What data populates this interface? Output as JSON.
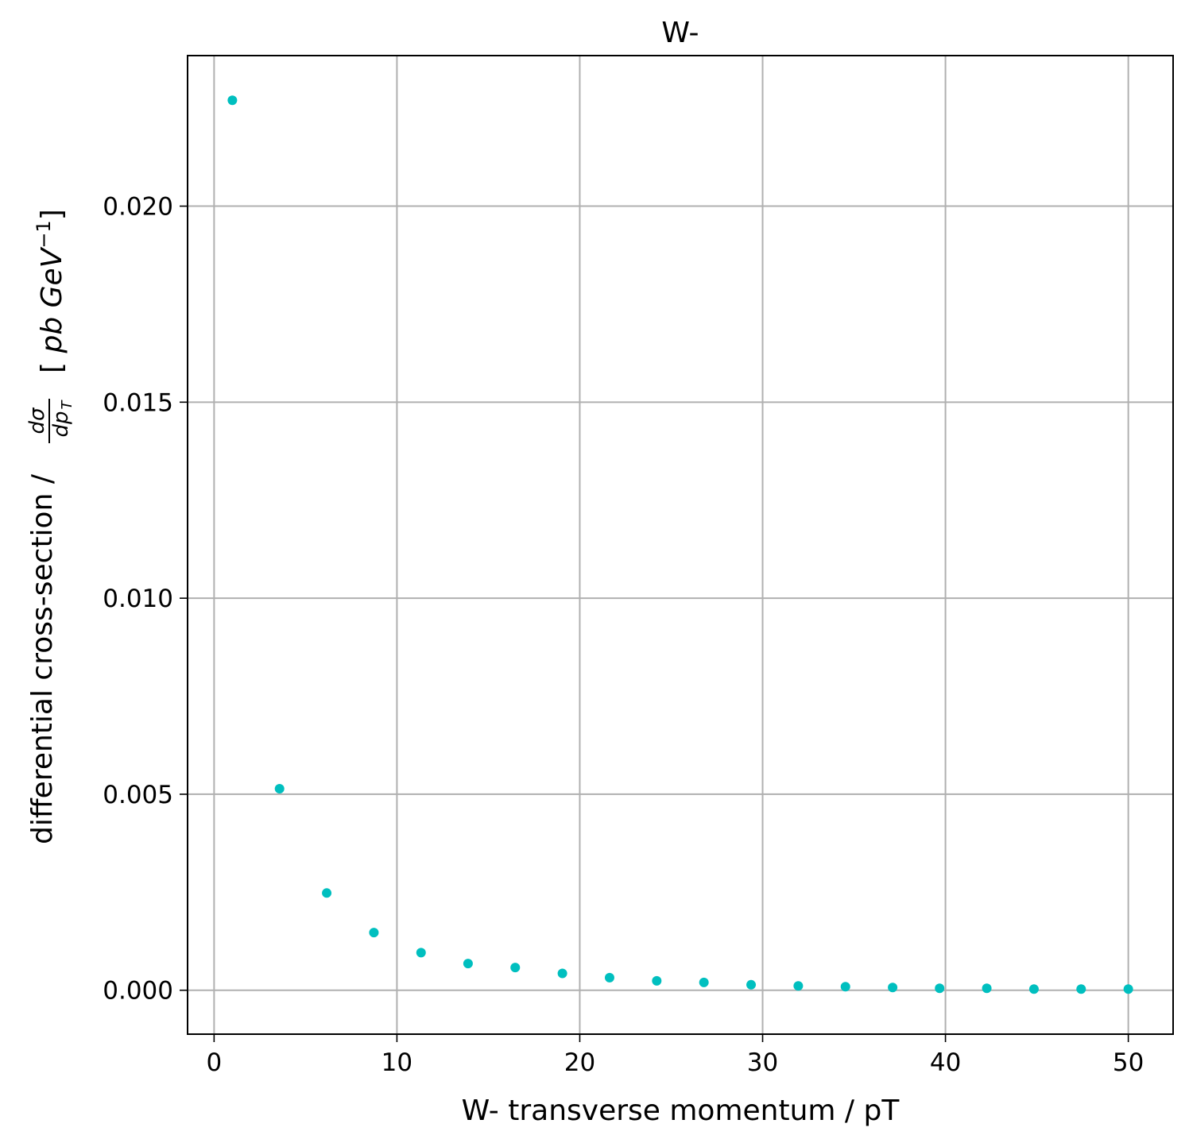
{
  "chart_data": {
    "type": "scatter",
    "title": "W-",
    "xlabel": "W- transverse momentum / pT",
    "ylabel": {
      "prefix": "differential cross-section / ",
      "frac_num": "dσ",
      "frac_den": "dp",
      "frac_den_sub": "T",
      "unit_open": "[",
      "unit_pb": "pb",
      "unit_gev": "GeV",
      "unit_sup": "−1",
      "unit_close": "]"
    },
    "xlim": [
      -1.45,
      52.45
    ],
    "ylim": [
      -0.00112,
      0.02384
    ],
    "x_ticks": [
      0,
      10,
      20,
      30,
      40,
      50
    ],
    "x_tick_labels": [
      "0",
      "10",
      "20",
      "30",
      "40",
      "50"
    ],
    "y_ticks": [
      0.0,
      0.005,
      0.01,
      0.015,
      0.02
    ],
    "y_tick_labels": [
      "0.000",
      "0.005",
      "0.010",
      "0.015",
      "0.020"
    ],
    "grid": true,
    "point_color": "#00bfbf",
    "series": [
      {
        "x": [
          1.0,
          3.58,
          6.16,
          8.74,
          11.32,
          13.89,
          16.47,
          19.05,
          21.63,
          24.21,
          26.79,
          29.37,
          31.95,
          34.53,
          37.11,
          39.68,
          42.26,
          44.84,
          47.42,
          50.0
        ],
        "y": [
          0.0227,
          0.00514,
          0.00248,
          0.00147,
          0.00096,
          0.00068,
          0.00058,
          0.00043,
          0.00032,
          0.00024,
          0.0002,
          0.00014,
          0.00011,
          9e-05,
          7e-05,
          5e-05,
          5e-05,
          3e-05,
          3e-05,
          3e-05
        ]
      }
    ]
  }
}
